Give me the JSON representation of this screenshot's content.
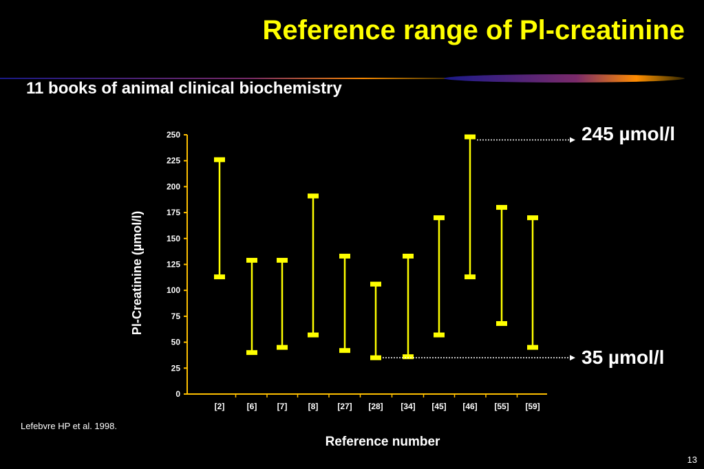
{
  "slide": {
    "title": "Reference range of Pl-creatinine",
    "subtitle": "11 books of animal clinical biochemistry",
    "citation": "Lefebvre HP et al. 1998.",
    "page_number": "13"
  },
  "annotations": {
    "high_label": "245 µmol/l",
    "low_label": "35 µmol/l"
  },
  "colors": {
    "title": "#ffff00",
    "bars": "#ffff00",
    "axis": "#ffc000",
    "background": "#000000"
  },
  "chart_data": {
    "type": "range",
    "xlabel": "Reference number",
    "ylabel": "Pl-Creatinine (µmol/l)",
    "ylim": [
      0,
      250
    ],
    "yticks": [
      0,
      25,
      50,
      75,
      100,
      125,
      150,
      175,
      200,
      225,
      250
    ],
    "categories": [
      "[2]",
      "[6]",
      "[7]",
      "[8]",
      "[27]",
      "[28]",
      "[34]",
      "[45]",
      "[46]",
      "[55]",
      "[59]"
    ],
    "lows": [
      113,
      40,
      45,
      57,
      42,
      35,
      36,
      57,
      113,
      68,
      45
    ],
    "highs": [
      226,
      129,
      129,
      191,
      133,
      106,
      133,
      170,
      248,
      180,
      170
    ],
    "reference_lines": [
      {
        "value": 245,
        "label": "245 µmol/l"
      },
      {
        "value": 35,
        "label": "35 µmol/l"
      }
    ],
    "grid": false
  }
}
